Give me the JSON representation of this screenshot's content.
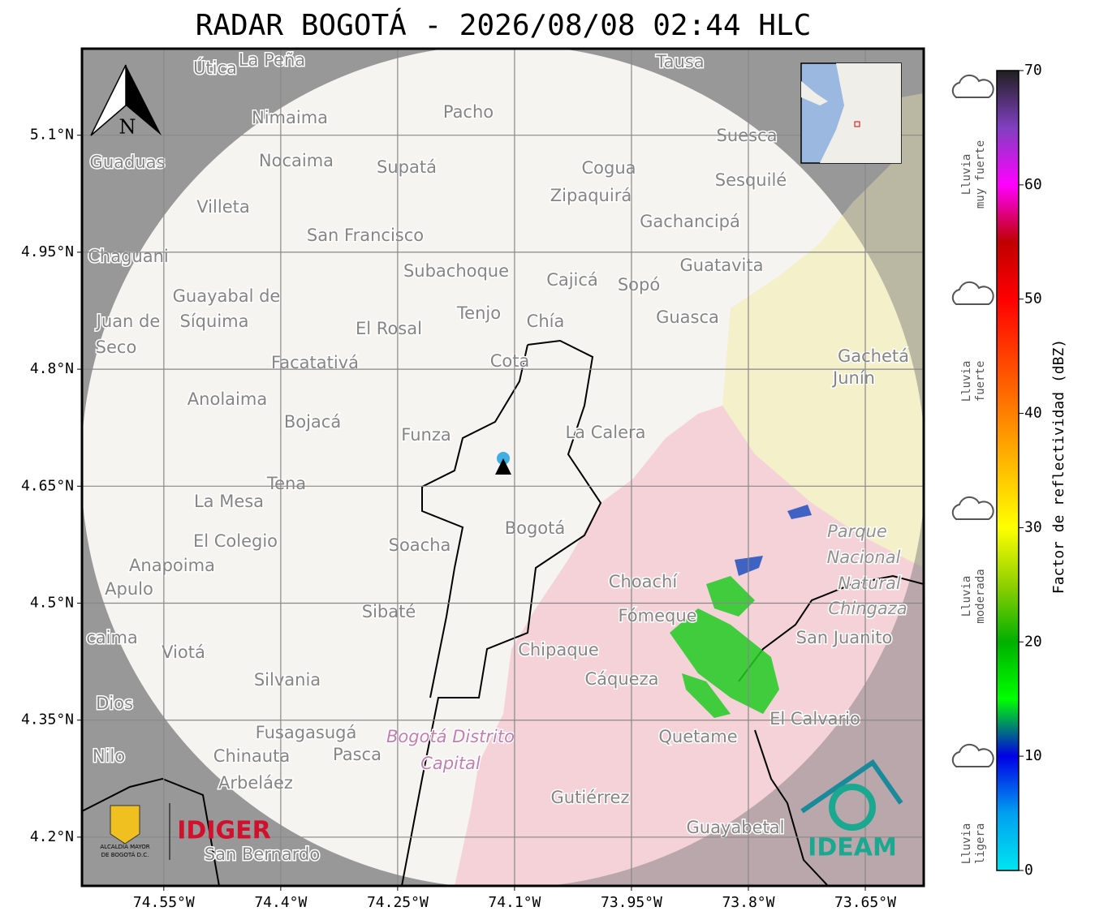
{
  "title": "RADAR BOGOTÁ - 2026/08/08 02:44 HLC",
  "map": {
    "xlim": [
      -74.655,
      -73.575
    ],
    "ylim": [
      4.1375,
      5.211
    ],
    "xticks": [
      {
        "value": -74.55,
        "label": "74.55°W"
      },
      {
        "value": -74.4,
        "label": "74.4°W"
      },
      {
        "value": -74.25,
        "label": "74.25°W"
      },
      {
        "value": -74.1,
        "label": "74.1°W"
      },
      {
        "value": -73.95,
        "label": "73.95°W"
      },
      {
        "value": -73.8,
        "label": "73.8°W"
      },
      {
        "value": -73.65,
        "label": "73.65°W"
      }
    ],
    "yticks": [
      {
        "value": 5.1,
        "label": "5.1°N"
      },
      {
        "value": 4.95,
        "label": "4.95°N"
      },
      {
        "value": 4.8,
        "label": "4.8°N"
      },
      {
        "value": 4.65,
        "label": "4.65°N"
      },
      {
        "value": 4.5,
        "label": "4.5°N"
      },
      {
        "value": 4.35,
        "label": "4.35°N"
      },
      {
        "value": 4.2,
        "label": "4.2°N"
      }
    ],
    "grid": true,
    "north": "N",
    "places": [
      "Útica",
      "La Peña",
      "Tausa",
      "Pacho",
      "Nimaima",
      "Guaduas",
      "Nocaima",
      "Supatá",
      "Cogua",
      "Suesca",
      "Sesquilé",
      "Zipaquirá",
      "Villeta",
      "Gachancipá",
      "San Francisco",
      "Chaguani",
      "Guatavita",
      "Subachoque",
      "Cajicá",
      "Sopó",
      "Guayabal de",
      "Síquima",
      "Juan de",
      "Seco",
      "Tenjo",
      "Chía",
      "Guasca",
      "El Rosal",
      "Facatativá",
      "Cota",
      "Gachetá",
      "Junín",
      "Anolaima",
      "Bojacá",
      "Funza",
      "La Calera",
      "Tena",
      "La Mesa",
      "Bogotá",
      "Parque",
      "Nacional",
      "Natural",
      "Chingaza",
      "El Colegio",
      "Soacha",
      "Anapoima",
      "Apulo",
      "Choachí",
      "Fómeque",
      "Sibaté",
      "San Juanito",
      "caima",
      "Viotá",
      "Chipaque",
      "Silvania",
      "Cáqueza",
      "Dios",
      "El Calvario",
      "Fusagasugá",
      "Bogotá Distrito",
      "Capital",
      "Quetame",
      "Nilo",
      "Chinauta",
      "Pasca",
      "Arbeláez",
      "Gutiérrez",
      "Guayabetal",
      "San Bernardo"
    ]
  },
  "colorbar": {
    "label": "Factor de reflectividad (dBZ)",
    "lim": [
      0,
      70
    ],
    "ticks": [
      0,
      10,
      20,
      30,
      40,
      50,
      60,
      70
    ],
    "colormap": [
      "#00e5f0",
      "#00a0f0",
      "#0000e6",
      "#00ff00",
      "#00b000",
      "#90d000",
      "#ffff00",
      "#ffc000",
      "#ff8000",
      "#ff4000",
      "#ff0000",
      "#c00000",
      "#ff00ff",
      "#8040c0",
      "#202020"
    ]
  },
  "rain_levels": [
    [
      "Lluvia",
      "muy fuerte"
    ],
    [
      "Lluvia",
      "fuerte"
    ],
    [
      "Lluvia",
      "moderada"
    ],
    [
      "Lluvia",
      "ligera"
    ]
  ],
  "logos": {
    "alcaldia": [
      "ALCALDÍA MAYOR",
      "DE BOGOTÁ D.C."
    ],
    "idiger": "IDIGER",
    "ideam": "IDEAM"
  }
}
